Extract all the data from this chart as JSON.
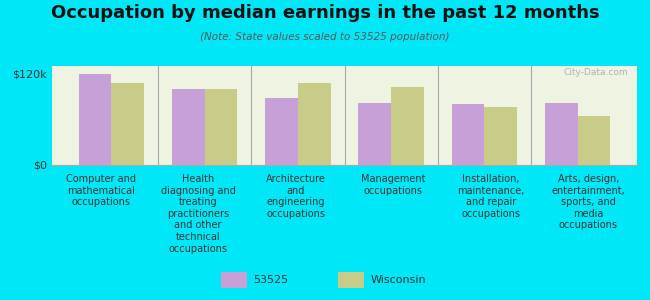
{
  "title": "Occupation by median earnings in the past 12 months",
  "subtitle": "(Note: State values scaled to 53525 population)",
  "background_color": "#00e8f8",
  "plot_bg_color": "#eef3e2",
  "categories": [
    "Computer and\nmathematical\noccupations",
    "Health\ndiagnosing and\ntreating\npractitioners\nand other\ntechnical\noccupations",
    "Architecture\nand\nengineering\noccupations",
    "Management\noccupations",
    "Installation,\nmaintenance,\nand repair\noccupations",
    "Arts, design,\nentertainment,\nsports, and\nmedia\noccupations"
  ],
  "series_53525": [
    120000,
    100000,
    88000,
    82000,
    80000,
    82000
  ],
  "series_wisconsin": [
    108000,
    100000,
    108000,
    102000,
    76000,
    65000
  ],
  "color_53525": "#c8a0d8",
  "color_wisconsin": "#c8cc88",
  "ylabel_ticks": [
    "$0",
    "$120k"
  ],
  "ytick_values": [
    0,
    120000
  ],
  "legend_label_1": "53525",
  "legend_label_2": "Wisconsin",
  "bar_width": 0.35,
  "watermark": "City-Data.com",
  "title_fontsize": 13,
  "subtitle_fontsize": 7.5,
  "xlabel_fontsize": 7,
  "legend_fontsize": 8
}
